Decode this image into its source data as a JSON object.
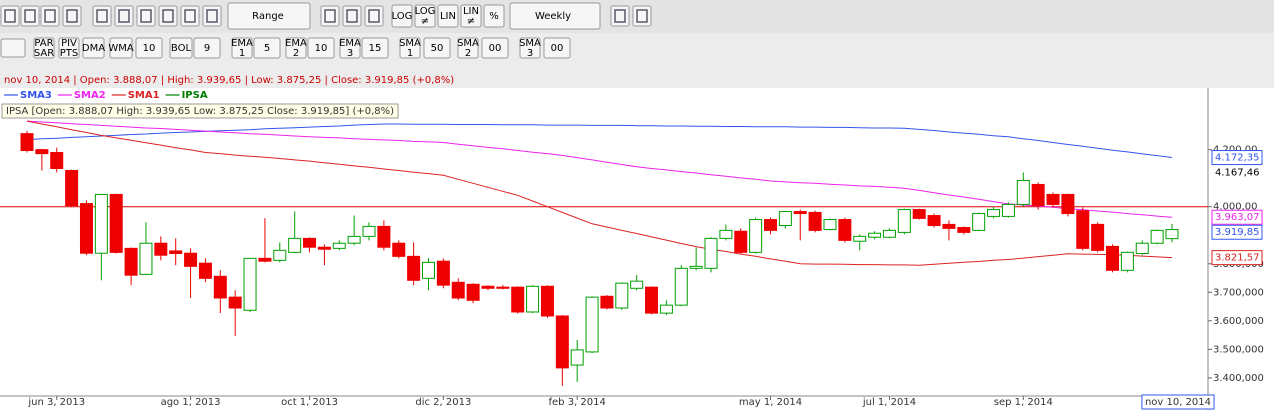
{
  "toolbar": {
    "range": "Range",
    "period": "Weekly",
    "scale_buttons": [
      "LOG",
      "LOG ≠",
      "LIN",
      "LIN ≠",
      "%"
    ],
    "indicators": [
      "PAR SAR",
      "PIV PTS",
      "DMA",
      "WMA",
      "10",
      "BOL",
      "9",
      "EMA 1",
      "5",
      "EMA 2",
      "10",
      "EMA 3",
      "15",
      "SMA 1",
      "50",
      "SMA 2",
      "00",
      "SMA 3",
      "00"
    ]
  },
  "chart_data": {
    "type": "candlestick",
    "name": "IPSA",
    "color": "#008000",
    "up_color": "#00a000",
    "down_color": "#ee0000",
    "info_line": "nov 10, 2014 | Open: 3.888,07 | High: 3.939,65 | Low: 3.875,25 | Close: 3.919,85 (+0,8%)",
    "label_box": "IPSA [Open: 3.888,07  High: 3.939,65  Low: 3.875,25  Close: 3.919,85] (+0,8%)",
    "categories": [
      null,
      null,
      "jun 3, 2013",
      null,
      null,
      null,
      null,
      null,
      null,
      null,
      null,
      "ago 1, 2013",
      null,
      null,
      null,
      null,
      null,
      null,
      null,
      "oct 1, 2013",
      null,
      null,
      null,
      null,
      null,
      null,
      null,
      null,
      "dic 2, 2013",
      null,
      null,
      null,
      null,
      null,
      null,
      null,
      null,
      "feb 3, 2014",
      null,
      null,
      null,
      null,
      null,
      null,
      null,
      null,
      null,
      null,
      null,
      null,
      "may 1, 2014",
      null,
      null,
      null,
      null,
      null,
      null,
      null,
      "jul 1, 2014",
      null,
      null,
      null,
      null,
      null,
      null,
      null,
      null,
      "sep 1, 2014",
      null,
      null,
      null,
      null,
      null,
      null,
      null,
      null,
      null,
      "nov 10, 2014"
    ],
    "open": [
      4256,
      4200,
      4190,
      4127,
      4011,
      3837,
      4043,
      3854,
      3763,
      3872,
      3845,
      3837,
      3802,
      3756,
      3683,
      3637,
      3819,
      3812,
      3840,
      3889,
      3858,
      3854,
      3872,
      3896,
      3931,
      3872,
      3826,
      3749,
      3809,
      3735,
      3728,
      3721,
      3718,
      3718,
      3631,
      3721,
      3617,
      3445,
      3491,
      3686,
      3645,
      3714,
      3718,
      3627,
      3655,
      3784,
      3784,
      3889,
      3914,
      3840,
      3955,
      3934,
      3983,
      3980,
      3920,
      3955,
      3879,
      3893,
      3893,
      3910,
      3990,
      3969,
      3938,
      3927,
      3917,
      3966,
      3966,
      4008,
      4078,
      4043,
      4043,
      3986,
      3938,
      3861,
      3777,
      3836,
      3872,
      3888.07
    ],
    "high": [
      4266,
      4203,
      4207,
      4130,
      4022,
      4045,
      4046,
      3857,
      3945,
      3896,
      3889,
      3854,
      3819,
      3777,
      3707,
      3819,
      3960,
      3875,
      3983,
      3893,
      3868,
      3882,
      3969,
      3945,
      3952,
      3882,
      3875,
      3819,
      3819,
      3749,
      3732,
      3725,
      3725,
      3721,
      3725,
      3725,
      3620,
      3533,
      3686,
      3690,
      3735,
      3760,
      3721,
      3672,
      3795,
      3857,
      3893,
      3938,
      3924,
      3962,
      3962,
      3986,
      3990,
      3986,
      3959,
      3962,
      3903,
      3914,
      3924,
      3993,
      3993,
      3976,
      3952,
      3931,
      3980,
      4000,
      4015,
      4120,
      4085,
      4050,
      4046,
      3997,
      3945,
      3868,
      3843,
      3882,
      3920,
      3939.65
    ],
    "low": [
      4190,
      4127,
      4120,
      3998,
      3830,
      3742,
      3836,
      3725,
      3760,
      3812,
      3795,
      3680,
      3735,
      3627,
      3547,
      3631,
      3805,
      3805,
      3837,
      3840,
      3795,
      3847,
      3865,
      3882,
      3847,
      3819,
      3725,
      3707,
      3714,
      3672,
      3662,
      3707,
      3710,
      3625,
      3627,
      3610,
      3372,
      3386,
      3487,
      3640,
      3638,
      3707,
      3623,
      3620,
      3651,
      3777,
      3770,
      3882,
      3836,
      3836,
      3903,
      3924,
      3882,
      3910,
      3917,
      3875,
      3847,
      3886,
      3889,
      3903,
      3955,
      3927,
      3882,
      3903,
      3914,
      3959,
      3962,
      4001,
      3990,
      3997,
      3966,
      3847,
      3840,
      3770,
      3770,
      3830,
      3868,
      3875.25
    ],
    "close": [
      4197,
      4186,
      4134,
      4004,
      3837,
      4043,
      3840,
      3760,
      3872,
      3830,
      3836,
      3791,
      3749,
      3680,
      3645,
      3819,
      3809,
      3847,
      3889,
      3858,
      3851,
      3872,
      3896,
      3931,
      3858,
      3826,
      3742,
      3805,
      3725,
      3680,
      3672,
      3714,
      3714,
      3631,
      3721,
      3617,
      3435,
      3498,
      3683,
      3645,
      3732,
      3739,
      3627,
      3655,
      3784,
      3791,
      3889,
      3917,
      3840,
      3955,
      3917,
      3983,
      3976,
      3917,
      3955,
      3882,
      3896,
      3907,
      3917,
      3990,
      3959,
      3934,
      3924,
      3910,
      3976,
      3990,
      4008,
      4092,
      4004,
      4008,
      3976,
      3854,
      3847,
      3777,
      3840,
      3872,
      3917,
      3919.85
    ],
    "overlays": [
      {
        "name": "SMA3",
        "color": "#3355ee",
        "values": [
          4235,
          4238,
          4240,
          4243,
          4245,
          4248,
          4250,
          4253,
          4255,
          4258,
          4260,
          4262,
          4264,
          4266,
          4268,
          4270,
          4273,
          4275,
          4277,
          4279,
          4281,
          4283,
          4286,
          4288,
          4290,
          4290,
          4289,
          4289,
          4289,
          4288,
          4288,
          4288,
          4287,
          4287,
          4287,
          4286,
          4286,
          4286,
          4285,
          4285,
          4285,
          4284,
          4284,
          4283,
          4283,
          4282,
          4282,
          4281,
          4281,
          4280,
          4280,
          4280,
          4279,
          4279,
          4278,
          4278,
          4277,
          4276,
          4276,
          4275,
          4271,
          4267,
          4262,
          4258,
          4254,
          4249,
          4245,
          4238,
          4232,
          4225,
          4218,
          4212,
          4205,
          4198,
          4192,
          4185,
          4179,
          4172.35
        ]
      },
      {
        "name": "SMA2",
        "color": "#ee22ee",
        "values": [
          4300,
          4297,
          4294,
          4291,
          4288,
          4285,
          4282,
          4279,
          4276,
          4274,
          4271,
          4268,
          4265,
          4262,
          4259,
          4256,
          4254,
          4251,
          4248,
          4245,
          4243,
          4241,
          4238,
          4236,
          4234,
          4232,
          4229,
          4227,
          4225,
          4219,
          4214,
          4208,
          4203,
          4197,
          4191,
          4186,
          4180,
          4172,
          4164,
          4156,
          4148,
          4140,
          4134,
          4129,
          4123,
          4118,
          4112,
          4107,
          4101,
          4096,
          4090,
          4087,
          4084,
          4082,
          4079,
          4076,
          4073,
          4071,
          4068,
          4065,
          4057,
          4049,
          4041,
          4034,
          4026,
          4018,
          4010,
          4006,
          4002,
          3998,
          3993,
          3989,
          3985,
          3981,
          3976,
          3972,
          3967,
          3963.07
        ]
      },
      {
        "name": "SMA1",
        "color": "#dd2222",
        "values": [
          4300,
          4290,
          4280,
          4270,
          4260,
          4250,
          4241,
          4233,
          4224,
          4216,
          4207,
          4199,
          4190,
          4186,
          4181,
          4177,
          4173,
          4169,
          4164,
          4160,
          4154,
          4149,
          4143,
          4138,
          4132,
          4127,
          4121,
          4116,
          4110,
          4096,
          4082,
          4068,
          4054,
          4040,
          4020,
          4000,
          3980,
          3960,
          3940,
          3929,
          3917,
          3906,
          3894,
          3883,
          3871,
          3860,
          3851,
          3843,
          3834,
          3826,
          3817,
          3809,
          3800,
          3799,
          3799,
          3798,
          3797,
          3797,
          3796,
          3796,
          3795,
          3798,
          3802,
          3805,
          3808,
          3812,
          3815,
          3820,
          3825,
          3830,
          3835,
          3834,
          3833,
          3832,
          3830,
          3827,
          3824,
          3821.57
        ]
      }
    ],
    "reference_line": {
      "value": 4000,
      "color": "#dd0000"
    },
    "ylim": [
      3340,
      4360
    ],
    "yticks": [
      {
        "value": 4200,
        "label": "4.200,00"
      },
      {
        "value": 4000,
        "label": "4.000,00"
      },
      {
        "value": 3800,
        "label": "3.800,000"
      },
      {
        "value": 3700,
        "label": "3.700,000"
      },
      {
        "value": 3600,
        "label": "3.600,000"
      },
      {
        "value": 3500,
        "label": "3.500,000"
      },
      {
        "value": 3400,
        "label": "3.400,000"
      }
    ],
    "price_tags": [
      {
        "value": 4167.46,
        "label": "4.167,46",
        "color": "#000000",
        "boxed": false
      },
      {
        "value": 4172.35,
        "label": "4.172,35",
        "color": "#3355ee",
        "boxed": true
      },
      {
        "value": 3963.07,
        "label": "3.963,07",
        "color": "#ee22ee",
        "boxed": true
      },
      {
        "value": 3919.85,
        "label": "3.919,85",
        "color": "#3355ee",
        "boxed": true
      },
      {
        "value": 3821.57,
        "label": "3.821,57",
        "color": "#dd2222",
        "boxed": true
      }
    ],
    "grid": false
  }
}
